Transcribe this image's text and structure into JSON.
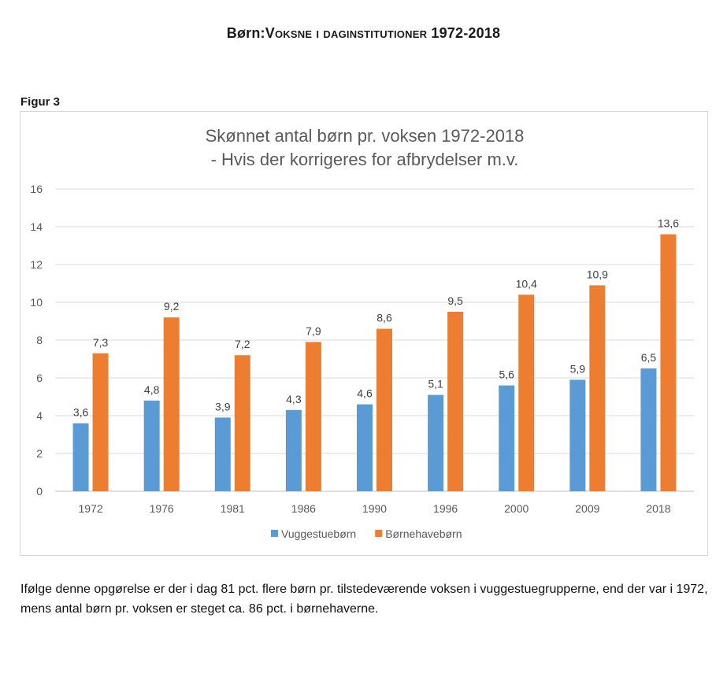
{
  "page": {
    "heading_prefix": "Børn:",
    "heading_smallcaps": "Voksne i daginstitutioner",
    "heading_years": " 1972-2018",
    "figure_label": "Figur 3",
    "caption": "Ifølge denne opgørelse er der i dag 81 pct. flere børn pr. tilstedeværende voksen i vuggestuegrupperne, end der var i 1972, mens antal børn pr. voksen er steget ca. 86 pct. i børnehaverne."
  },
  "chart_data": {
    "type": "bar",
    "title": "Skønnet antal børn pr. voksen 1972-2018",
    "subtitle": "- Hvis der korrigeres for afbrydelser m.v.",
    "categories": [
      "1972",
      "1976",
      "1981",
      "1986",
      "1990",
      "1996",
      "2000",
      "2009",
      "2018"
    ],
    "series": [
      {
        "name": "Vuggestuebørn",
        "color": "#5b9bd5",
        "values": [
          3.6,
          4.8,
          3.9,
          4.3,
          4.6,
          5.1,
          5.6,
          5.9,
          6.5
        ],
        "labels": [
          "3,6",
          "4,8",
          "3,9",
          "4,3",
          "4,6",
          "5,1",
          "5,6",
          "5,9",
          "6,5"
        ]
      },
      {
        "name": "Børnehavebørn",
        "color": "#ed7d31",
        "values": [
          7.3,
          9.2,
          7.2,
          7.9,
          8.6,
          9.5,
          10.4,
          10.9,
          13.6
        ],
        "labels": [
          "7,3",
          "9,2",
          "7,2",
          "7,9",
          "8,6",
          "9,5",
          "10,4",
          "10,9",
          "13,6"
        ]
      }
    ],
    "ylim": [
      0,
      16
    ],
    "yticks": [
      "0",
      "2",
      "4",
      "6",
      "8",
      "10",
      "12",
      "14",
      "16"
    ],
    "grid": true,
    "legend_position": "bottom",
    "xlabel": "",
    "ylabel": ""
  }
}
